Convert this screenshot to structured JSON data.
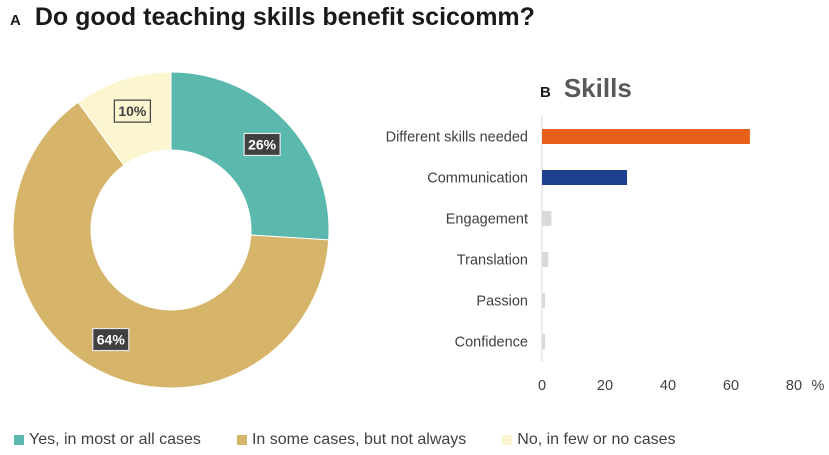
{
  "panel_a": {
    "letter": "A",
    "title": "Do good teaching skills benefit scicomm?"
  },
  "panel_b": {
    "letter": "B",
    "title": "Skills"
  },
  "legend": [
    {
      "label": "Yes, in most or all cases",
      "color": "#5bb8ac"
    },
    {
      "label": "In some cases, but not always",
      "color": "#d6b46a"
    },
    {
      "label": "No, in few or no cases",
      "color": "#fbf6d0"
    }
  ],
  "chart_data": [
    {
      "type": "pie",
      "subtype": "donut",
      "title": "Do good teaching skills benefit scicomm?",
      "slices": [
        {
          "label": "Yes, in most or all cases",
          "value": 26,
          "display": "26%",
          "color": "#5bb8ac"
        },
        {
          "label": "In some cases, but not always",
          "value": 64,
          "display": "64%",
          "color": "#d6b46a"
        },
        {
          "label": "No, in few or no cases",
          "value": 10,
          "display": "10%",
          "color": "#fbf6d0"
        }
      ],
      "start": "12 o'clock",
      "direction": "clockwise",
      "legend": "bottom"
    },
    {
      "type": "bar",
      "orientation": "horizontal",
      "title": "Skills",
      "categories": [
        "Different skills needed",
        "Communication",
        "Engagement",
        "Translation",
        "Passion",
        "Confidence"
      ],
      "values": [
        66,
        27,
        3,
        2,
        1,
        1
      ],
      "colors": [
        "#e8611a",
        "#1f3f8f",
        "#d9d9d9",
        "#d9d9d9",
        "#d9d9d9",
        "#d9d9d9"
      ],
      "xlim": [
        0,
        80
      ],
      "xticks": [
        "0",
        "20",
        "40",
        "60",
        "80"
      ],
      "xunit": "%",
      "grid": false
    }
  ]
}
